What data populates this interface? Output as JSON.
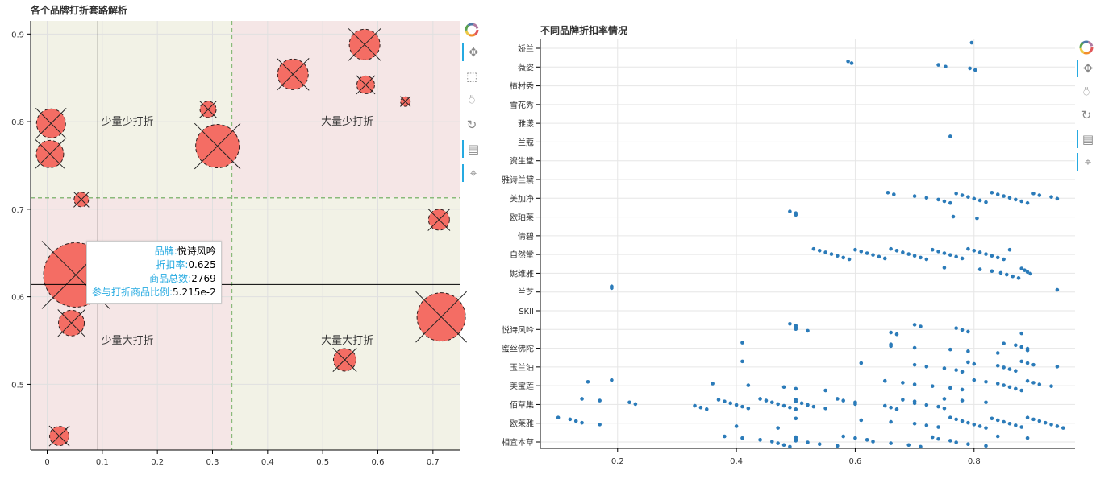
{
  "chart_data": [
    {
      "type": "scatter",
      "title": "各个品牌打折套路解析",
      "xlabel": "",
      "ylabel": "",
      "xlim": [
        -0.03,
        0.75
      ],
      "ylim": [
        0.425,
        0.915
      ],
      "xticks": [
        0,
        0.1,
        0.2,
        0.3,
        0.4,
        0.5,
        0.6,
        0.7
      ],
      "xtick_labels": [
        "0",
        "0.1",
        "0.2",
        "0.3",
        "0.4",
        "0.5",
        "0.6",
        "0.7"
      ],
      "yticks": [
        0.5,
        0.6,
        0.7,
        0.8,
        0.9
      ],
      "ytick_labels": [
        "0.5",
        "0.6",
        "0.7",
        "0.8",
        "0.9"
      ],
      "vline": 0.092,
      "hline": 0.614,
      "dashed_vline": 0.335,
      "dashed_hline": 0.713,
      "quadrant_labels": [
        "少量少打折",
        "大量少打折",
        "少量大打折",
        "大量大打折"
      ],
      "points": [
        {
          "x": 0.007,
          "y": 0.798,
          "size": 36
        },
        {
          "x": 0.005,
          "y": 0.763,
          "size": 34
        },
        {
          "x": 0.062,
          "y": 0.711,
          "size": 18
        },
        {
          "x": 0.022,
          "y": 0.441,
          "size": 24
        },
        {
          "x": 0.044,
          "y": 0.57,
          "size": 32
        },
        {
          "x": 0.052,
          "y": 0.625,
          "size": 80
        },
        {
          "x": 0.292,
          "y": 0.814,
          "size": 20
        },
        {
          "x": 0.309,
          "y": 0.772,
          "size": 54
        },
        {
          "x": 0.446,
          "y": 0.854,
          "size": 38
        },
        {
          "x": 0.576,
          "y": 0.888,
          "size": 38
        },
        {
          "x": 0.578,
          "y": 0.842,
          "size": 22
        },
        {
          "x": 0.65,
          "y": 0.823,
          "size": 12
        },
        {
          "x": 0.711,
          "y": 0.688,
          "size": 26
        },
        {
          "x": 0.715,
          "y": 0.577,
          "size": 60
        },
        {
          "x": 0.54,
          "y": 0.528,
          "size": 28
        }
      ],
      "tooltip": {
        "rows": [
          {
            "label": "品牌:",
            "value": "悦诗风吟"
          },
          {
            "label": "折扣率:",
            "value": "0.625"
          },
          {
            "label": "商品总数:",
            "value": "2769"
          },
          {
            "label": "参与打折商品比例:",
            "value": "5.215e-2"
          }
        ]
      }
    },
    {
      "type": "scatter",
      "title": "不同品牌折扣率情况",
      "xlabel": "",
      "ylabel": "",
      "xlim": [
        0.07,
        0.97
      ],
      "xticks": [
        0.2,
        0.4,
        0.6,
        0.8
      ],
      "xtick_labels": [
        "0.2",
        "0.4",
        "0.6",
        "0.8"
      ],
      "categories": [
        "娇兰",
        "薇姿",
        "植村秀",
        "雪花秀",
        "雅漾",
        "兰蔻",
        "资生堂",
        "雅诗兰黛",
        "美加净",
        "欧珀莱",
        "倩碧",
        "自然堂",
        "妮维雅",
        "兰芝",
        "SKII",
        "悦诗风吟",
        "蜜丝佛陀",
        "玉兰油",
        "美宝莲",
        "佰草集",
        "欧莱雅",
        "相宜本草"
      ],
      "points": [
        {
          "brand": "娇兰",
          "x": [
            0.796
          ]
        },
        {
          "brand": "薇姿",
          "x": [
            0.588,
            0.594,
            0.74,
            0.752,
            0.793,
            0.802
          ]
        },
        {
          "brand": "兰蔻",
          "x": [
            0.76
          ]
        },
        {
          "brand": "美加净",
          "x": [
            0.655,
            0.665,
            0.7,
            0.72,
            0.74,
            0.75,
            0.76,
            0.77,
            0.78,
            0.79,
            0.8,
            0.81,
            0.82,
            0.83,
            0.84,
            0.85,
            0.86,
            0.87,
            0.88,
            0.89,
            0.9,
            0.91,
            0.93,
            0.94
          ]
        },
        {
          "brand": "欧珀莱",
          "x": [
            0.49,
            0.5,
            0.5,
            0.765,
            0.805
          ]
        },
        {
          "brand": "自然堂",
          "x": [
            0.53,
            0.54,
            0.55,
            0.56,
            0.57,
            0.58,
            0.59,
            0.6,
            0.61,
            0.62,
            0.63,
            0.64,
            0.65,
            0.66,
            0.67,
            0.68,
            0.69,
            0.7,
            0.71,
            0.72,
            0.73,
            0.74,
            0.75,
            0.76,
            0.77,
            0.78,
            0.79,
            0.8,
            0.81,
            0.82,
            0.83,
            0.84,
            0.85,
            0.86
          ]
        },
        {
          "brand": "妮维雅",
          "x": [
            0.75,
            0.81,
            0.83,
            0.845,
            0.855,
            0.865,
            0.875,
            0.88,
            0.885,
            0.89,
            0.895
          ]
        },
        {
          "brand": "兰芝",
          "x": [
            0.19,
            0.19,
            0.94
          ]
        },
        {
          "brand": "悦诗风吟",
          "x": [
            0.49,
            0.5,
            0.5,
            0.5,
            0.52,
            0.66,
            0.67,
            0.7,
            0.71,
            0.77,
            0.78,
            0.79,
            0.88
          ]
        },
        {
          "brand": "蜜丝佛陀",
          "x": [
            0.41,
            0.66,
            0.66,
            0.7,
            0.76,
            0.79,
            0.84,
            0.85,
            0.87,
            0.88,
            0.89,
            0.89
          ]
        },
        {
          "brand": "玉兰油",
          "x": [
            0.41,
            0.61,
            0.7,
            0.72,
            0.75,
            0.77,
            0.78,
            0.79,
            0.8,
            0.84,
            0.85,
            0.86,
            0.87,
            0.88,
            0.89,
            0.9,
            0.94
          ]
        },
        {
          "brand": "美宝莲",
          "x": [
            0.19,
            0.15,
            0.36,
            0.42,
            0.48,
            0.5,
            0.55,
            0.65,
            0.68,
            0.7,
            0.73,
            0.76,
            0.78,
            0.8,
            0.82,
            0.84,
            0.85,
            0.86,
            0.87,
            0.88,
            0.89,
            0.9,
            0.91,
            0.93
          ]
        },
        {
          "brand": "佰草集",
          "x": [
            0.14,
            0.17,
            0.22,
            0.23,
            0.33,
            0.34,
            0.35,
            0.37,
            0.38,
            0.39,
            0.4,
            0.41,
            0.42,
            0.44,
            0.45,
            0.46,
            0.47,
            0.48,
            0.49,
            0.5,
            0.5,
            0.5,
            0.51,
            0.52,
            0.53,
            0.55,
            0.57,
            0.58,
            0.6,
            0.6,
            0.65,
            0.66,
            0.67,
            0.68,
            0.7,
            0.7,
            0.72,
            0.74,
            0.75,
            0.75,
            0.78,
            0.82
          ]
        },
        {
          "brand": "欧莱雅",
          "x": [
            0.1,
            0.12,
            0.13,
            0.14,
            0.17,
            0.4,
            0.47,
            0.5,
            0.61,
            0.66,
            0.7,
            0.72,
            0.74,
            0.76,
            0.77,
            0.78,
            0.79,
            0.8,
            0.81,
            0.82,
            0.83,
            0.84,
            0.85,
            0.86,
            0.87,
            0.88,
            0.89,
            0.9,
            0.91,
            0.92,
            0.93,
            0.94,
            0.95
          ]
        },
        {
          "brand": "相宜本草",
          "x": [
            0.38,
            0.41,
            0.44,
            0.46,
            0.47,
            0.48,
            0.49,
            0.5,
            0.5,
            0.5,
            0.52,
            0.54,
            0.57,
            0.58,
            0.6,
            0.62,
            0.63,
            0.66,
            0.69,
            0.71,
            0.73,
            0.74,
            0.76,
            0.77,
            0.79,
            0.82,
            0.84,
            0.89
          ]
        }
      ]
    }
  ],
  "colors": {
    "bubble_fill": "#f46d64",
    "bubble_stroke": "#2e1e1e",
    "dot": "#2b7bb9",
    "quadrant_green": "#f2f2e6",
    "quadrant_red": "#f5e6e6",
    "dashed_line": "#8aba7a",
    "tooltip_label": "#26aae1"
  },
  "toolbar": {
    "icons": [
      "bokeh-logo-icon",
      "pan-icon",
      "box-zoom-icon",
      "wheel-zoom-icon",
      "reset-icon",
      "hover-icon",
      "crosshair-icon"
    ]
  }
}
